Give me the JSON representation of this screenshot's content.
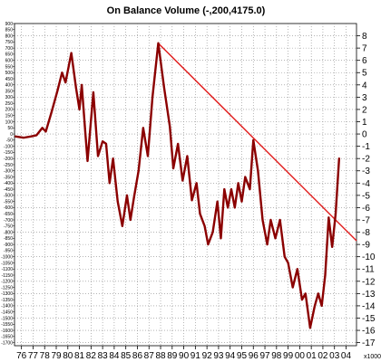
{
  "chart_data": {
    "type": "line",
    "title": "On Balance Volume (-,200,4175.0)",
    "right_axis_unit": "x1000",
    "xlim": [
      1975.4,
      2004.9
    ],
    "ylim": [
      -17.25,
      9.0
    ],
    "grid": true,
    "legend": "none",
    "colors": {
      "series": "#8b0000",
      "trendline": "#e01818",
      "grid": "#888888",
      "background": "#ffffff"
    },
    "x_tick_labels": [
      {
        "x": 1976,
        "label": "76"
      },
      {
        "x": 1977,
        "label": "77"
      },
      {
        "x": 1978,
        "label": "78"
      },
      {
        "x": 1979,
        "label": "79"
      },
      {
        "x": 1980,
        "label": "80"
      },
      {
        "x": 1981,
        "label": "81"
      },
      {
        "x": 1982,
        "label": "82"
      },
      {
        "x": 1983,
        "label": "83"
      },
      {
        "x": 1984,
        "label": "84"
      },
      {
        "x": 1985,
        "label": "85"
      },
      {
        "x": 1986,
        "label": "86"
      },
      {
        "x": 1987,
        "label": "87"
      },
      {
        "x": 1988,
        "label": "88"
      },
      {
        "x": 1989,
        "label": "89"
      },
      {
        "x": 1990,
        "label": "90"
      },
      {
        "x": 1991,
        "label": "91"
      },
      {
        "x": 1992,
        "label": "92"
      },
      {
        "x": 1993,
        "label": "93"
      },
      {
        "x": 1994,
        "label": "94"
      },
      {
        "x": 1995,
        "label": "95"
      },
      {
        "x": 1996,
        "label": "96"
      },
      {
        "x": 1997,
        "label": "97"
      },
      {
        "x": 1998,
        "label": "98"
      },
      {
        "x": 1999,
        "label": "99"
      },
      {
        "x": 2000,
        "label": "00"
      },
      {
        "x": 2001,
        "label": "01"
      },
      {
        "x": 2002,
        "label": "02"
      },
      {
        "x": 2003,
        "label": "03"
      },
      {
        "x": 2004,
        "label": "04"
      }
    ],
    "right_ticks": [
      8,
      7,
      6,
      5,
      4,
      3,
      2,
      1,
      0,
      -1,
      -2,
      -3,
      -4,
      -5,
      -6,
      -7,
      -8,
      -9,
      -10,
      -11,
      -12,
      -13,
      -14,
      -15,
      -16,
      -17
    ],
    "left_ticks": [
      {
        "v": 9.0,
        "label": "900"
      },
      {
        "v": 8.5,
        "label": "850"
      },
      {
        "v": 8.0,
        "label": "800"
      },
      {
        "v": 7.5,
        "label": "750"
      },
      {
        "v": 7.0,
        "label": "700"
      },
      {
        "v": 6.5,
        "label": "650"
      },
      {
        "v": 6.0,
        "label": "600"
      },
      {
        "v": 5.5,
        "label": "550"
      },
      {
        "v": 5.0,
        "label": "500"
      },
      {
        "v": 4.5,
        "label": "450"
      },
      {
        "v": 4.0,
        "label": "400"
      },
      {
        "v": 3.5,
        "label": "350"
      },
      {
        "v": 3.0,
        "label": "300"
      },
      {
        "v": 2.5,
        "label": "250"
      },
      {
        "v": 2.0,
        "label": "200"
      },
      {
        "v": 1.5,
        "label": "150"
      },
      {
        "v": 1.0,
        "label": "100"
      },
      {
        "v": 0.5,
        "label": "50"
      },
      {
        "v": 0.0,
        "label": "0"
      },
      {
        "v": -0.5,
        "label": "-50"
      },
      {
        "v": -1.0,
        "label": "-100"
      },
      {
        "v": -1.5,
        "label": "-150"
      },
      {
        "v": -2.0,
        "label": "-200"
      },
      {
        "v": -2.5,
        "label": "-250"
      },
      {
        "v": -3.0,
        "label": "-300"
      },
      {
        "v": -3.5,
        "label": "-350"
      },
      {
        "v": -4.0,
        "label": "-400"
      },
      {
        "v": -4.5,
        "label": "-450"
      },
      {
        "v": -5.0,
        "label": "-500"
      },
      {
        "v": -5.5,
        "label": "-550"
      },
      {
        "v": -6.0,
        "label": "-600"
      },
      {
        "v": -6.5,
        "label": "-650"
      },
      {
        "v": -7.0,
        "label": "-700"
      },
      {
        "v": -7.5,
        "label": "-750"
      },
      {
        "v": -8.0,
        "label": "-800"
      },
      {
        "v": -8.5,
        "label": "-850"
      },
      {
        "v": -9.0,
        "label": "-900"
      },
      {
        "v": -9.5,
        "label": "-950"
      },
      {
        "v": -10.0,
        "label": "-1000"
      },
      {
        "v": -10.5,
        "label": "-1050"
      },
      {
        "v": -11.0,
        "label": "-1100"
      },
      {
        "v": -11.5,
        "label": "-1150"
      },
      {
        "v": -12.0,
        "label": "-1200"
      },
      {
        "v": -12.5,
        "label": "-1250"
      },
      {
        "v": -13.0,
        "label": "-1300"
      },
      {
        "v": -13.5,
        "label": "-1350"
      },
      {
        "v": -14.0,
        "label": "-1400"
      },
      {
        "v": -14.5,
        "label": "-1450"
      },
      {
        "v": -15.0,
        "label": "-1500"
      },
      {
        "v": -15.5,
        "label": "-1550"
      },
      {
        "v": -16.0,
        "label": "-1600"
      },
      {
        "v": -16.5,
        "label": "-1650"
      },
      {
        "v": -17.0,
        "label": "-1700"
      }
    ],
    "series": [
      {
        "points": [
          [
            1975.5,
            -0.2
          ],
          [
            1976.2,
            -0.3
          ],
          [
            1976.8,
            -0.2
          ],
          [
            1977.3,
            -0.1
          ],
          [
            1977.8,
            0.5
          ],
          [
            1978.1,
            0.2
          ],
          [
            1978.6,
            1.8
          ],
          [
            1979.1,
            3.5
          ],
          [
            1979.5,
            5.0
          ],
          [
            1979.8,
            4.2
          ],
          [
            1980.3,
            6.6
          ],
          [
            1980.7,
            3.8
          ],
          [
            1981.0,
            2.0
          ],
          [
            1981.2,
            4.0
          ],
          [
            1981.5,
            0.2
          ],
          [
            1981.7,
            -2.2
          ],
          [
            1982.2,
            3.4
          ],
          [
            1982.6,
            -1.8
          ],
          [
            1983.0,
            -0.6
          ],
          [
            1983.3,
            -0.8
          ],
          [
            1983.6,
            -4.0
          ],
          [
            1983.9,
            -2.0
          ],
          [
            1984.3,
            -5.5
          ],
          [
            1984.7,
            -7.5
          ],
          [
            1985.1,
            -5.0
          ],
          [
            1985.4,
            -7.0
          ],
          [
            1985.7,
            -5.2
          ],
          [
            1986.1,
            -3.0
          ],
          [
            1986.5,
            0.5
          ],
          [
            1986.9,
            -1.8
          ],
          [
            1987.3,
            3.0
          ],
          [
            1987.8,
            7.4
          ],
          [
            1988.3,
            3.8
          ],
          [
            1988.8,
            0.6
          ],
          [
            1989.1,
            -2.8
          ],
          [
            1989.5,
            -0.8
          ],
          [
            1989.9,
            -3.8
          ],
          [
            1990.3,
            -1.8
          ],
          [
            1990.7,
            -5.4
          ],
          [
            1991.1,
            -4.0
          ],
          [
            1991.4,
            -6.5
          ],
          [
            1991.8,
            -7.5
          ],
          [
            1992.1,
            -9.0
          ],
          [
            1992.5,
            -8.0
          ],
          [
            1992.9,
            -5.5
          ],
          [
            1993.2,
            -8.5
          ],
          [
            1993.5,
            -4.5
          ],
          [
            1993.8,
            -6.0
          ],
          [
            1994.1,
            -4.5
          ],
          [
            1994.4,
            -6.0
          ],
          [
            1994.7,
            -4.0
          ],
          [
            1995.0,
            -5.5
          ],
          [
            1995.3,
            -3.5
          ],
          [
            1995.7,
            -4.5
          ],
          [
            1996.0,
            -0.5
          ],
          [
            1996.4,
            -3.0
          ],
          [
            1996.8,
            -7.0
          ],
          [
            1997.2,
            -9.0
          ],
          [
            1997.5,
            -7.0
          ],
          [
            1997.9,
            -8.5
          ],
          [
            1998.3,
            -7.0
          ],
          [
            1998.7,
            -10.0
          ],
          [
            1999.0,
            -10.5
          ],
          [
            1999.4,
            -12.5
          ],
          [
            1999.8,
            -11.0
          ],
          [
            2000.2,
            -13.5
          ],
          [
            2000.5,
            -13.0
          ],
          [
            2000.9,
            -15.8
          ],
          [
            2001.3,
            -14.0
          ],
          [
            2001.6,
            -13.0
          ],
          [
            2001.9,
            -14.0
          ],
          [
            2002.2,
            -11.5
          ],
          [
            2002.5,
            -6.8
          ],
          [
            2002.8,
            -9.2
          ],
          [
            2003.1,
            -6.5
          ],
          [
            2003.4,
            -2.0
          ]
        ]
      }
    ],
    "trendline": {
      "from": [
        1987.8,
        7.4
      ],
      "to": [
        2004.9,
        -8.7
      ]
    }
  }
}
